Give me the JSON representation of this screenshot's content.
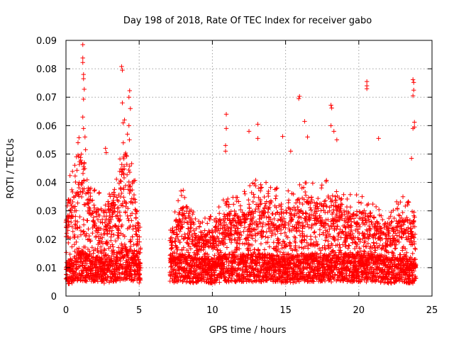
{
  "chart_data": {
    "type": "scatter",
    "title": "Day 198 of 2018, Rate Of TEC Index for receiver gabo",
    "xlabel": "GPS time / hours",
    "ylabel": "ROTI / TECUs",
    "xlim": [
      0,
      25
    ],
    "ylim": [
      0,
      0.09
    ],
    "x_ticks": [
      "0",
      "5",
      "10",
      "15",
      "20",
      "25"
    ],
    "y_ticks": [
      "0",
      "0.01",
      "0.02",
      "0.03",
      "0.04",
      "0.05",
      "0.06",
      "0.07",
      "0.08",
      "0.09"
    ],
    "x_tick_values": [
      0,
      5,
      10,
      15,
      20,
      25
    ],
    "y_tick_values": [
      0,
      0.01,
      0.02,
      0.03,
      0.04,
      0.05,
      0.06,
      0.07,
      0.08,
      0.09
    ],
    "grid": true,
    "marker": "+",
    "series": [
      {
        "name": "ROTI",
        "color": "#ff0000",
        "segments": [
          {
            "t_start": 0.0,
            "t_end": 5.1
          },
          {
            "t_start": 7.1,
            "t_end": 23.9
          }
        ],
        "envelope": [
          {
            "t": 0.0,
            "base": 0.009,
            "upper": 0.03
          },
          {
            "t": 0.5,
            "base": 0.01,
            "upper": 0.04
          },
          {
            "t": 1.0,
            "base": 0.012,
            "upper": 0.05
          },
          {
            "t": 1.5,
            "base": 0.011,
            "upper": 0.04
          },
          {
            "t": 2.0,
            "base": 0.011,
            "upper": 0.032
          },
          {
            "t": 2.5,
            "base": 0.01,
            "upper": 0.03
          },
          {
            "t": 3.0,
            "base": 0.01,
            "upper": 0.032
          },
          {
            "t": 3.5,
            "base": 0.011,
            "upper": 0.035
          },
          {
            "t": 4.0,
            "base": 0.013,
            "upper": 0.055
          },
          {
            "t": 4.5,
            "base": 0.012,
            "upper": 0.042
          },
          {
            "t": 5.1,
            "base": 0.01,
            "upper": 0.02
          },
          {
            "t": 7.1,
            "base": 0.01,
            "upper": 0.02
          },
          {
            "t": 8.0,
            "base": 0.011,
            "upper": 0.035
          },
          {
            "t": 9.0,
            "base": 0.01,
            "upper": 0.022
          },
          {
            "t": 10.0,
            "base": 0.01,
            "upper": 0.025
          },
          {
            "t": 11.0,
            "base": 0.011,
            "upper": 0.03
          },
          {
            "t": 12.0,
            "base": 0.011,
            "upper": 0.03
          },
          {
            "t": 13.0,
            "base": 0.011,
            "upper": 0.035
          },
          {
            "t": 14.0,
            "base": 0.011,
            "upper": 0.033
          },
          {
            "t": 15.0,
            "base": 0.01,
            "upper": 0.03
          },
          {
            "t": 16.0,
            "base": 0.011,
            "upper": 0.035
          },
          {
            "t": 17.0,
            "base": 0.011,
            "upper": 0.033
          },
          {
            "t": 18.0,
            "base": 0.011,
            "upper": 0.035
          },
          {
            "t": 19.0,
            "base": 0.011,
            "upper": 0.03
          },
          {
            "t": 20.0,
            "base": 0.011,
            "upper": 0.03
          },
          {
            "t": 21.0,
            "base": 0.011,
            "upper": 0.028
          },
          {
            "t": 22.0,
            "base": 0.01,
            "upper": 0.025
          },
          {
            "t": 23.0,
            "base": 0.01,
            "upper": 0.03
          },
          {
            "t": 23.9,
            "base": 0.01,
            "upper": 0.028
          }
        ],
        "peaks": [
          {
            "x": 1.15,
            "y": 0.0885
          },
          {
            "x": 1.15,
            "y": 0.0838
          },
          {
            "x": 1.15,
            "y": 0.0822
          },
          {
            "x": 1.2,
            "y": 0.078
          },
          {
            "x": 1.2,
            "y": 0.0765
          },
          {
            "x": 1.25,
            "y": 0.0728
          },
          {
            "x": 1.2,
            "y": 0.0693
          },
          {
            "x": 1.15,
            "y": 0.063
          },
          {
            "x": 1.2,
            "y": 0.059
          },
          {
            "x": 1.3,
            "y": 0.056
          },
          {
            "x": 3.8,
            "y": 0.0808
          },
          {
            "x": 3.85,
            "y": 0.0795
          },
          {
            "x": 4.35,
            "y": 0.0723
          },
          {
            "x": 4.3,
            "y": 0.07
          },
          {
            "x": 3.85,
            "y": 0.068
          },
          {
            "x": 4.4,
            "y": 0.066
          },
          {
            "x": 4.0,
            "y": 0.062
          },
          {
            "x": 4.3,
            "y": 0.06
          },
          {
            "x": 4.2,
            "y": 0.057
          },
          {
            "x": 2.7,
            "y": 0.052
          },
          {
            "x": 2.75,
            "y": 0.0505
          },
          {
            "x": 10.95,
            "y": 0.064
          },
          {
            "x": 10.95,
            "y": 0.059
          },
          {
            "x": 10.9,
            "y": 0.053
          },
          {
            "x": 10.9,
            "y": 0.051
          },
          {
            "x": 12.5,
            "y": 0.058
          },
          {
            "x": 13.1,
            "y": 0.0605
          },
          {
            "x": 13.1,
            "y": 0.0555
          },
          {
            "x": 14.8,
            "y": 0.0562
          },
          {
            "x": 15.35,
            "y": 0.051
          },
          {
            "x": 15.95,
            "y": 0.0703
          },
          {
            "x": 15.9,
            "y": 0.0695
          },
          {
            "x": 16.3,
            "y": 0.0615
          },
          {
            "x": 16.5,
            "y": 0.056
          },
          {
            "x": 18.1,
            "y": 0.0672
          },
          {
            "x": 18.15,
            "y": 0.0662
          },
          {
            "x": 18.1,
            "y": 0.06
          },
          {
            "x": 18.3,
            "y": 0.058
          },
          {
            "x": 18.5,
            "y": 0.055
          },
          {
            "x": 20.55,
            "y": 0.0755
          },
          {
            "x": 20.55,
            "y": 0.074
          },
          {
            "x": 20.55,
            "y": 0.073
          },
          {
            "x": 21.35,
            "y": 0.0555
          },
          {
            "x": 23.7,
            "y": 0.0762
          },
          {
            "x": 23.75,
            "y": 0.0752
          },
          {
            "x": 23.75,
            "y": 0.0725
          },
          {
            "x": 23.7,
            "y": 0.0705
          },
          {
            "x": 23.8,
            "y": 0.0612
          },
          {
            "x": 23.8,
            "y": 0.0595
          },
          {
            "x": 23.7,
            "y": 0.059
          },
          {
            "x": 23.6,
            "y": 0.0485
          }
        ]
      }
    ]
  }
}
